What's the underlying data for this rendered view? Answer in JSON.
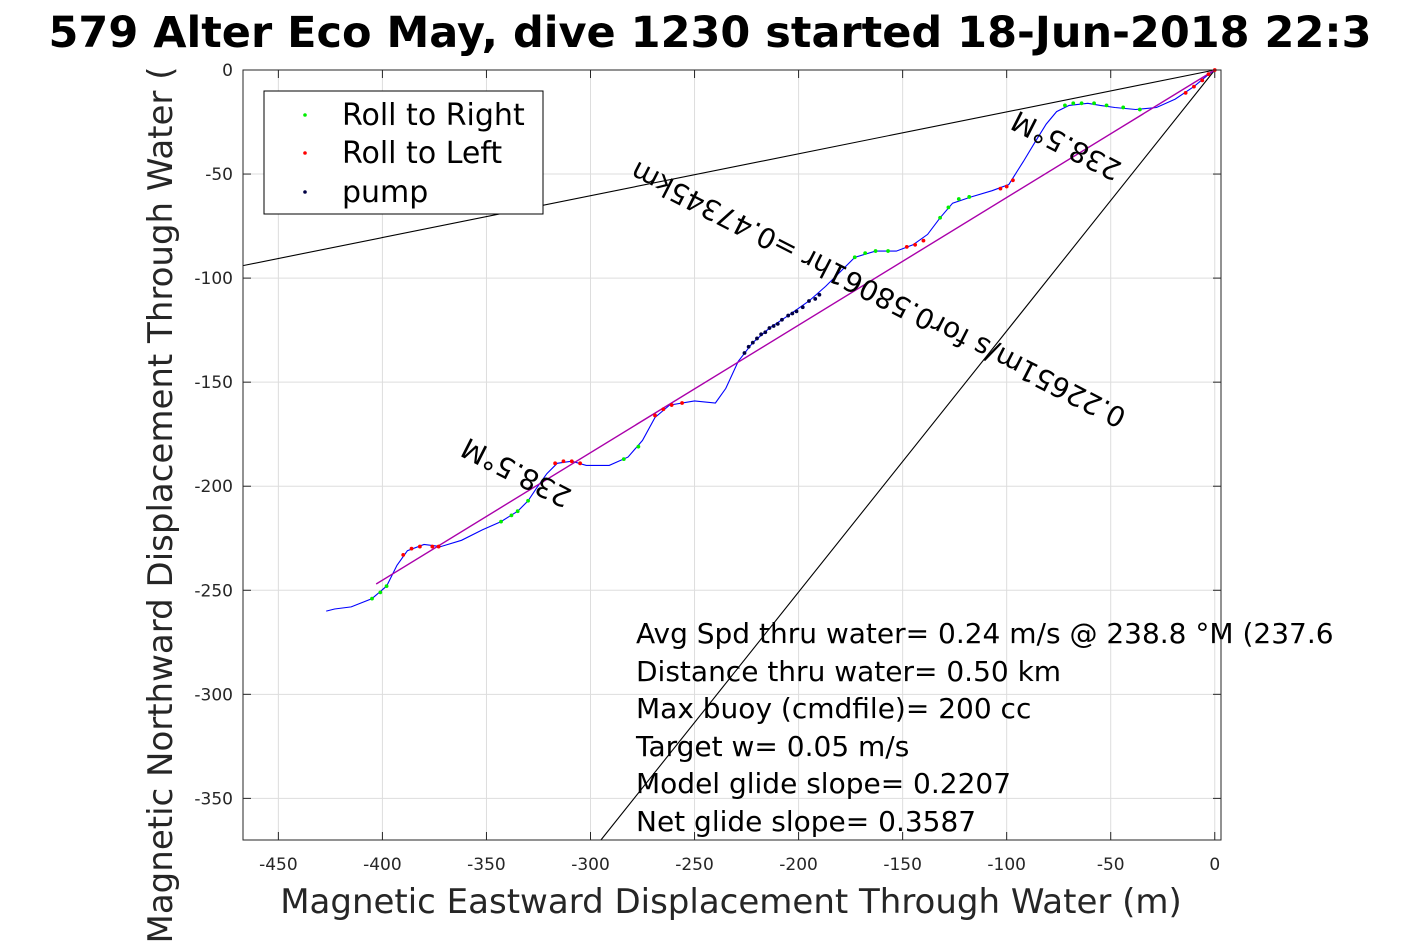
{
  "chart_data": {
    "type": "scatter",
    "title": "579 Alter Eco May, dive 1230 started 18-Jun-2018 22:3",
    "xlabel": "Magnetic Eastward Displacement Through Water (m)",
    "ylabel": "Magnetic Northward Displacement Through Water (",
    "xlim": [
      -467,
      3
    ],
    "ylim": [
      -370,
      0
    ],
    "xticks": [
      -450,
      -400,
      -350,
      -300,
      -250,
      -200,
      -150,
      -100,
      -50,
      0
    ],
    "yticks": [
      0,
      -50,
      -100,
      -150,
      -200,
      -250,
      -300,
      -350
    ],
    "grid": true,
    "legend_position": "top-left",
    "legend": [
      {
        "label": "Roll to Right",
        "color": "#00ee00"
      },
      {
        "label": "Roll to Left",
        "color": "#ff0000"
      },
      {
        "label": "pump",
        "color": "#000044"
      }
    ],
    "track": [
      [
        -427,
        -260
      ],
      [
        -423,
        -259
      ],
      [
        -415,
        -258
      ],
      [
        -405,
        -254
      ],
      [
        -398,
        -248
      ],
      [
        -393,
        -238
      ],
      [
        -388,
        -231
      ],
      [
        -380,
        -228
      ],
      [
        -372,
        -229
      ],
      [
        -362,
        -226
      ],
      [
        -352,
        -221
      ],
      [
        -343,
        -217
      ],
      [
        -335,
        -212
      ],
      [
        -330,
        -207
      ],
      [
        -326,
        -201
      ],
      [
        -321,
        -194
      ],
      [
        -316,
        -189
      ],
      [
        -309,
        -188
      ],
      [
        -302,
        -190
      ],
      [
        -291,
        -190
      ],
      [
        -282,
        -186
      ],
      [
        -275,
        -178
      ],
      [
        -269,
        -167
      ],
      [
        -262,
        -161
      ],
      [
        -250,
        -159
      ],
      [
        -240,
        -160
      ],
      [
        -235,
        -153
      ],
      [
        -229,
        -140
      ],
      [
        -222,
        -131
      ],
      [
        -214,
        -124
      ],
      [
        -205,
        -118
      ],
      [
        -195,
        -111
      ],
      [
        -187,
        -104
      ],
      [
        -180,
        -97
      ],
      [
        -173,
        -90
      ],
      [
        -163,
        -87
      ],
      [
        -153,
        -87
      ],
      [
        -145,
        -84
      ],
      [
        -138,
        -79
      ],
      [
        -132,
        -71
      ],
      [
        -126,
        -64
      ],
      [
        -117,
        -61
      ],
      [
        -107,
        -58
      ],
      [
        -99,
        -55
      ],
      [
        -92,
        -44
      ],
      [
        -86,
        -34
      ],
      [
        -81,
        -26
      ],
      [
        -76,
        -20
      ],
      [
        -70,
        -17
      ],
      [
        -61,
        -16
      ],
      [
        -55,
        -17
      ],
      [
        -48,
        -18
      ],
      [
        -38,
        -19
      ],
      [
        -28,
        -18
      ],
      [
        -19,
        -14
      ],
      [
        -10,
        -8
      ],
      [
        -4,
        -3
      ],
      [
        0,
        0
      ]
    ],
    "series": [
      {
        "name": "Roll to Right",
        "color": "#00ee00",
        "points": [
          [
            -405,
            -254
          ],
          [
            -401,
            -251
          ],
          [
            -398,
            -248
          ],
          [
            -343,
            -217
          ],
          [
            -338,
            -214
          ],
          [
            -335,
            -212
          ],
          [
            -330,
            -207
          ],
          [
            -284,
            -187
          ],
          [
            -277,
            -181
          ],
          [
            -173,
            -90
          ],
          [
            -168,
            -88
          ],
          [
            -163,
            -87
          ],
          [
            -157,
            -87
          ],
          [
            -132,
            -71
          ],
          [
            -128,
            -66
          ],
          [
            -123,
            -62
          ],
          [
            -118,
            -61
          ],
          [
            -72,
            -17
          ],
          [
            -68,
            -16
          ],
          [
            -64,
            -16
          ],
          [
            -58,
            -16
          ],
          [
            -52,
            -17
          ],
          [
            -44,
            -18
          ],
          [
            -36,
            -19
          ]
        ]
      },
      {
        "name": "Roll to Left",
        "color": "#ff0000",
        "points": [
          [
            -390,
            -233
          ],
          [
            -386,
            -230
          ],
          [
            -382,
            -229
          ],
          [
            -376,
            -229
          ],
          [
            -373,
            -229
          ],
          [
            -317,
            -189
          ],
          [
            -313,
            -188
          ],
          [
            -309,
            -188
          ],
          [
            -305,
            -189
          ],
          [
            -269,
            -166
          ],
          [
            -265,
            -163
          ],
          [
            -261,
            -161
          ],
          [
            -256,
            -160
          ],
          [
            -148,
            -85
          ],
          [
            -144,
            -84
          ],
          [
            -140,
            -82
          ],
          [
            -103,
            -57
          ],
          [
            -100,
            -56
          ],
          [
            -97,
            -53
          ],
          [
            -14,
            -11
          ],
          [
            -10,
            -8
          ],
          [
            -6,
            -5
          ],
          [
            -3,
            -2
          ],
          [
            0,
            0
          ]
        ]
      },
      {
        "name": "pump",
        "color": "#000044",
        "points": [
          [
            -226,
            -136
          ],
          [
            -224,
            -133
          ],
          [
            -222,
            -131
          ],
          [
            -220,
            -129
          ],
          [
            -218,
            -127
          ],
          [
            -216,
            -126
          ],
          [
            -214,
            -124
          ],
          [
            -212,
            -123
          ],
          [
            -210,
            -122
          ],
          [
            -208,
            -120
          ],
          [
            -205,
            -118
          ],
          [
            -203,
            -117
          ],
          [
            -201,
            -116
          ],
          [
            -198,
            -114
          ],
          [
            -195,
            -111
          ],
          [
            -192,
            -110
          ],
          [
            -190,
            -108
          ]
        ]
      }
    ],
    "fit_line": {
      "from": [
        -403,
        -247
      ],
      "to": [
        0,
        0
      ],
      "color": "#aa00aa"
    },
    "reference_lines": [
      {
        "from": [
          0,
          0
        ],
        "to": [
          -467,
          -94
        ]
      },
      {
        "from": [
          0,
          0
        ],
        "to": [
          -295,
          -370
        ]
      }
    ],
    "annotations_rotated": [
      "238.5°M",
      "0.22651m/s for0.58061hr =0.47345km",
      "238.5°M"
    ],
    "text_box": [
      "Avg Spd thru water=  0.24 m/s @ 238.8 °M (237.6",
      "Distance thru water=  0.50 km",
      "Max buoy (cmdfile)= 200 cc",
      "Target w= 0.05 m/s",
      "Model glide slope= 0.2207",
      "Net glide slope= 0.3587"
    ]
  }
}
